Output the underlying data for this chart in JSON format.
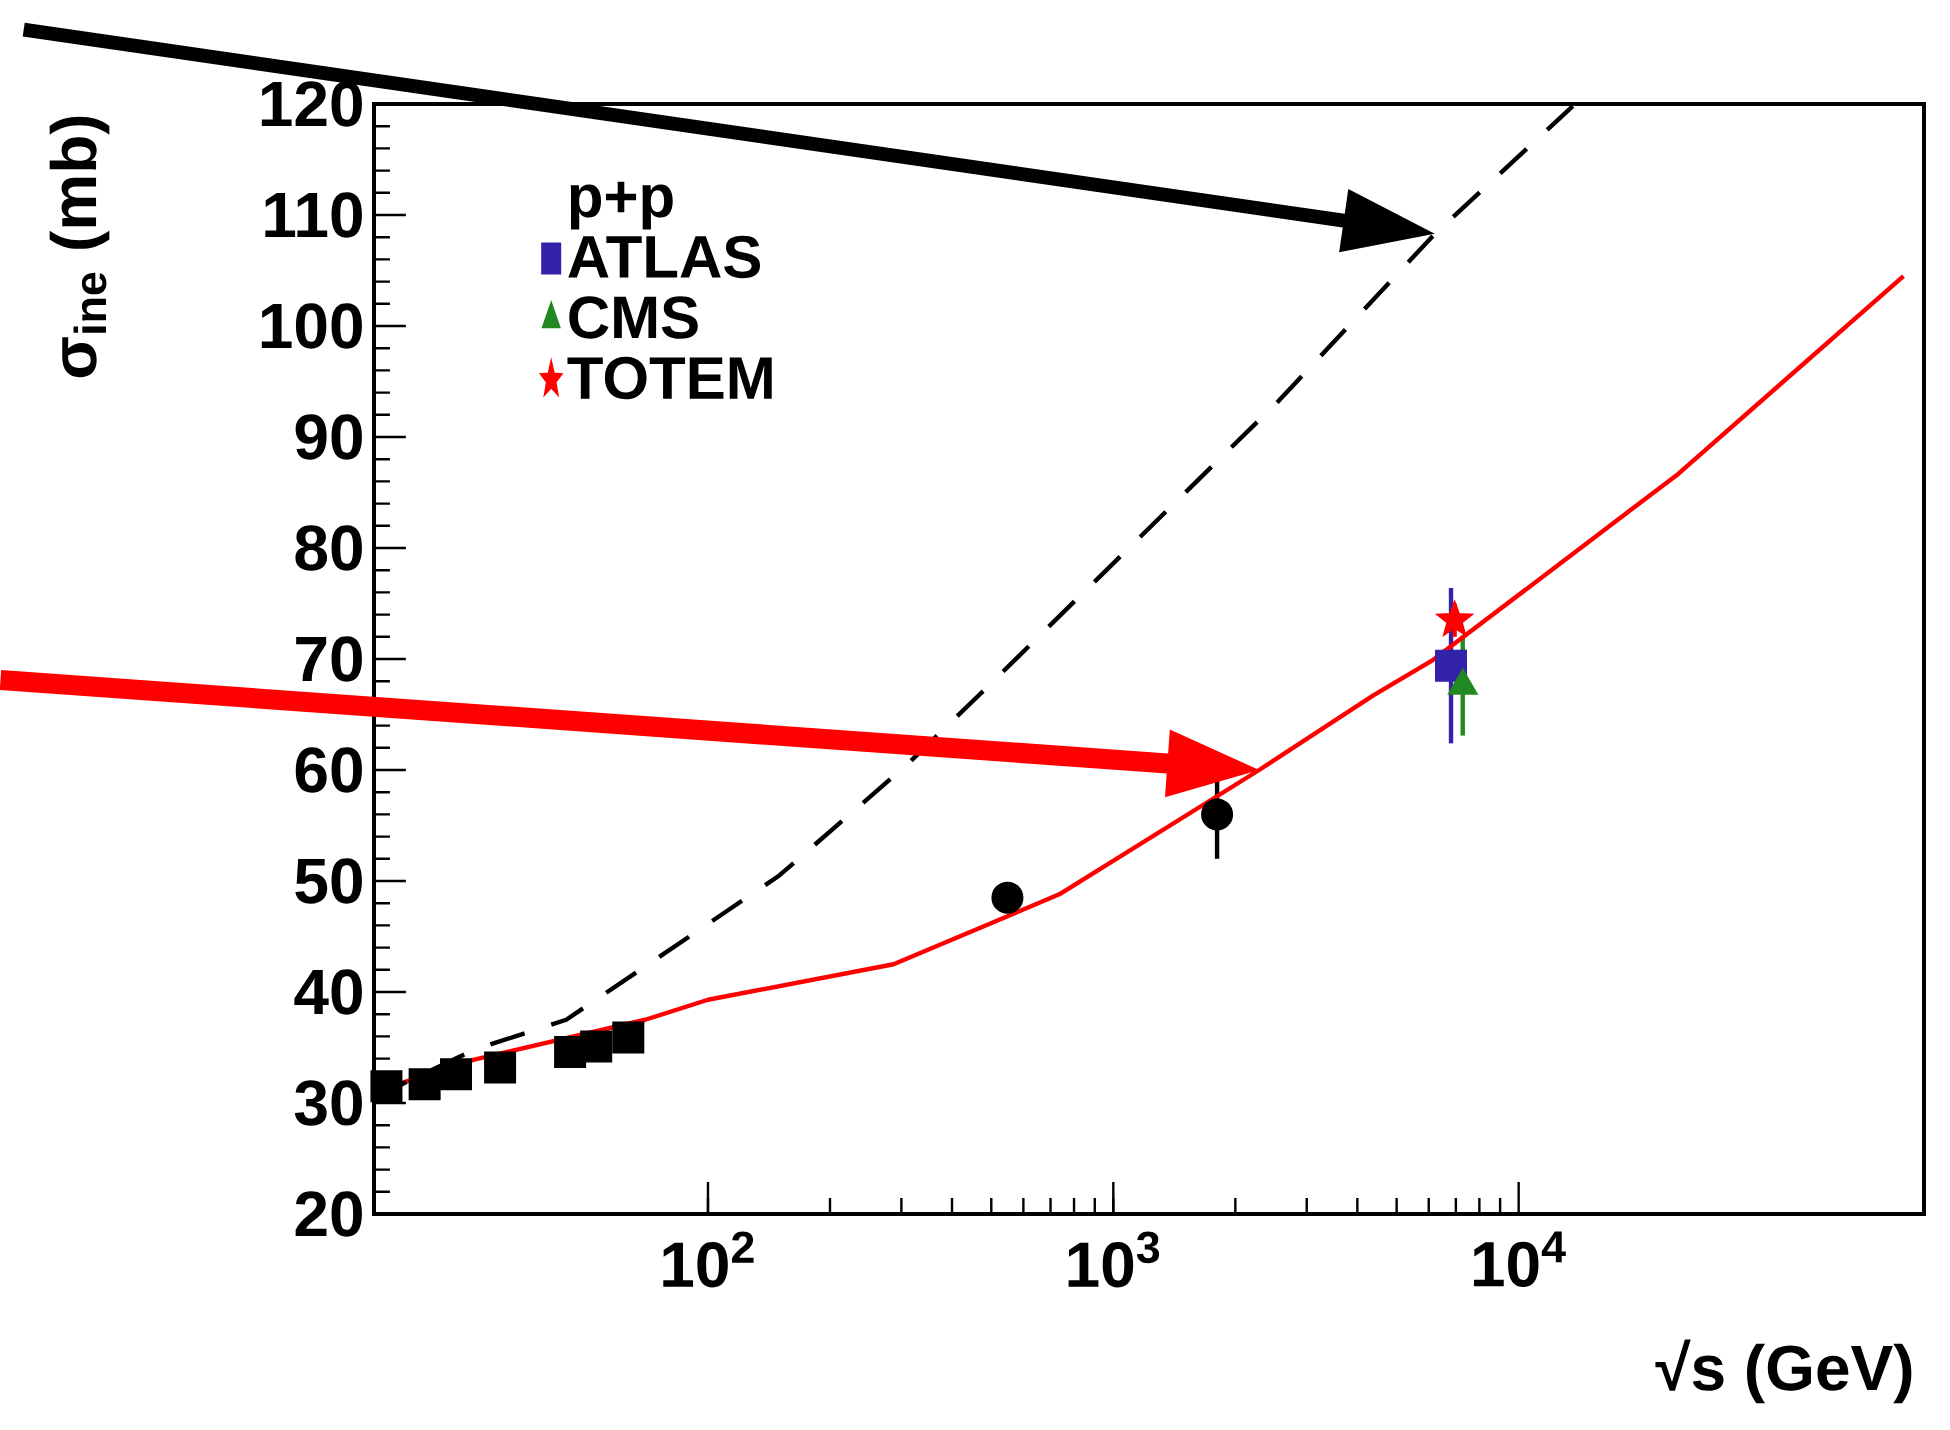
{
  "chart_data": {
    "type": "scatter",
    "xlabel": "√s (GeV)",
    "ylabel": "σ$_{ine}$ (mb)",
    "legend_title": "p+p",
    "log": "x",
    "legend": "top left",
    "xlim": [
      15,
      100000
    ],
    "ylim": [
      20,
      120
    ],
    "xticks": [
      {
        "value": 100,
        "label": "10$^{2}$"
      },
      {
        "value": 1000,
        "label": "10$^{3}$"
      },
      {
        "value": 10000,
        "label": "10$^{4}$"
      }
    ],
    "yticks": [
      20,
      30,
      40,
      50,
      60,
      70,
      80,
      90,
      100,
      110,
      120
    ],
    "series": [
      {
        "marker": "square",
        "color": "#000000",
        "x": [
          16.1,
          20,
          23.9,
          30.7,
          45.7,
          53,
          63.6
        ],
        "values": [
          31.5,
          31.7,
          32.6,
          33.2,
          34.6,
          35.1,
          35.9
        ]
      },
      {
        "marker": "circle",
        "color": "#000000",
        "x": [
          548,
          1803
        ],
        "values": [
          48.5,
          56.0
        ],
        "errors": [
          null,
          4
        ]
      },
      {
        "marker": "square",
        "name": "ATLAS",
        "color": "#3322aa",
        "x": [
          6810
        ],
        "values": [
          69.4
        ],
        "errors": [
          7
        ]
      },
      {
        "marker": "triangle",
        "name": "CMS",
        "color": "#228822",
        "x": [
          7280
        ],
        "values": [
          67.6
        ],
        "errors": [
          4.5
        ]
      },
      {
        "marker": "star",
        "name": "TOTEM",
        "color": "#ff0000",
        "x": [
          6950
        ],
        "values": [
          73.5
        ],
        "errors": [
          1.5
        ]
      },
      {
        "type": "line",
        "marker": "none",
        "line_style": "solid",
        "color": "#ff0000",
        "x": [
          15,
          26.5,
          70,
          100,
          287,
          736,
          2290,
          4370,
          6140,
          24800,
          89000
        ],
        "values": [
          31.0,
          33.9,
          37.5,
          39.3,
          42.5,
          48.8,
          60,
          66.7,
          69.9,
          86.7,
          104.5
        ]
      },
      {
        "type": "line",
        "marker": "none",
        "line_style": "dashed",
        "color": "#000000",
        "x": [
          15,
          26.5,
          44.7,
          70,
          150,
          308,
          468,
          2566,
          6210,
          13600
        ],
        "values": [
          30.5,
          34.8,
          37.5,
          42.3,
          50.5,
          60.4,
          66.8,
          93.3,
          108.3,
          119.8
        ]
      }
    ]
  }
}
